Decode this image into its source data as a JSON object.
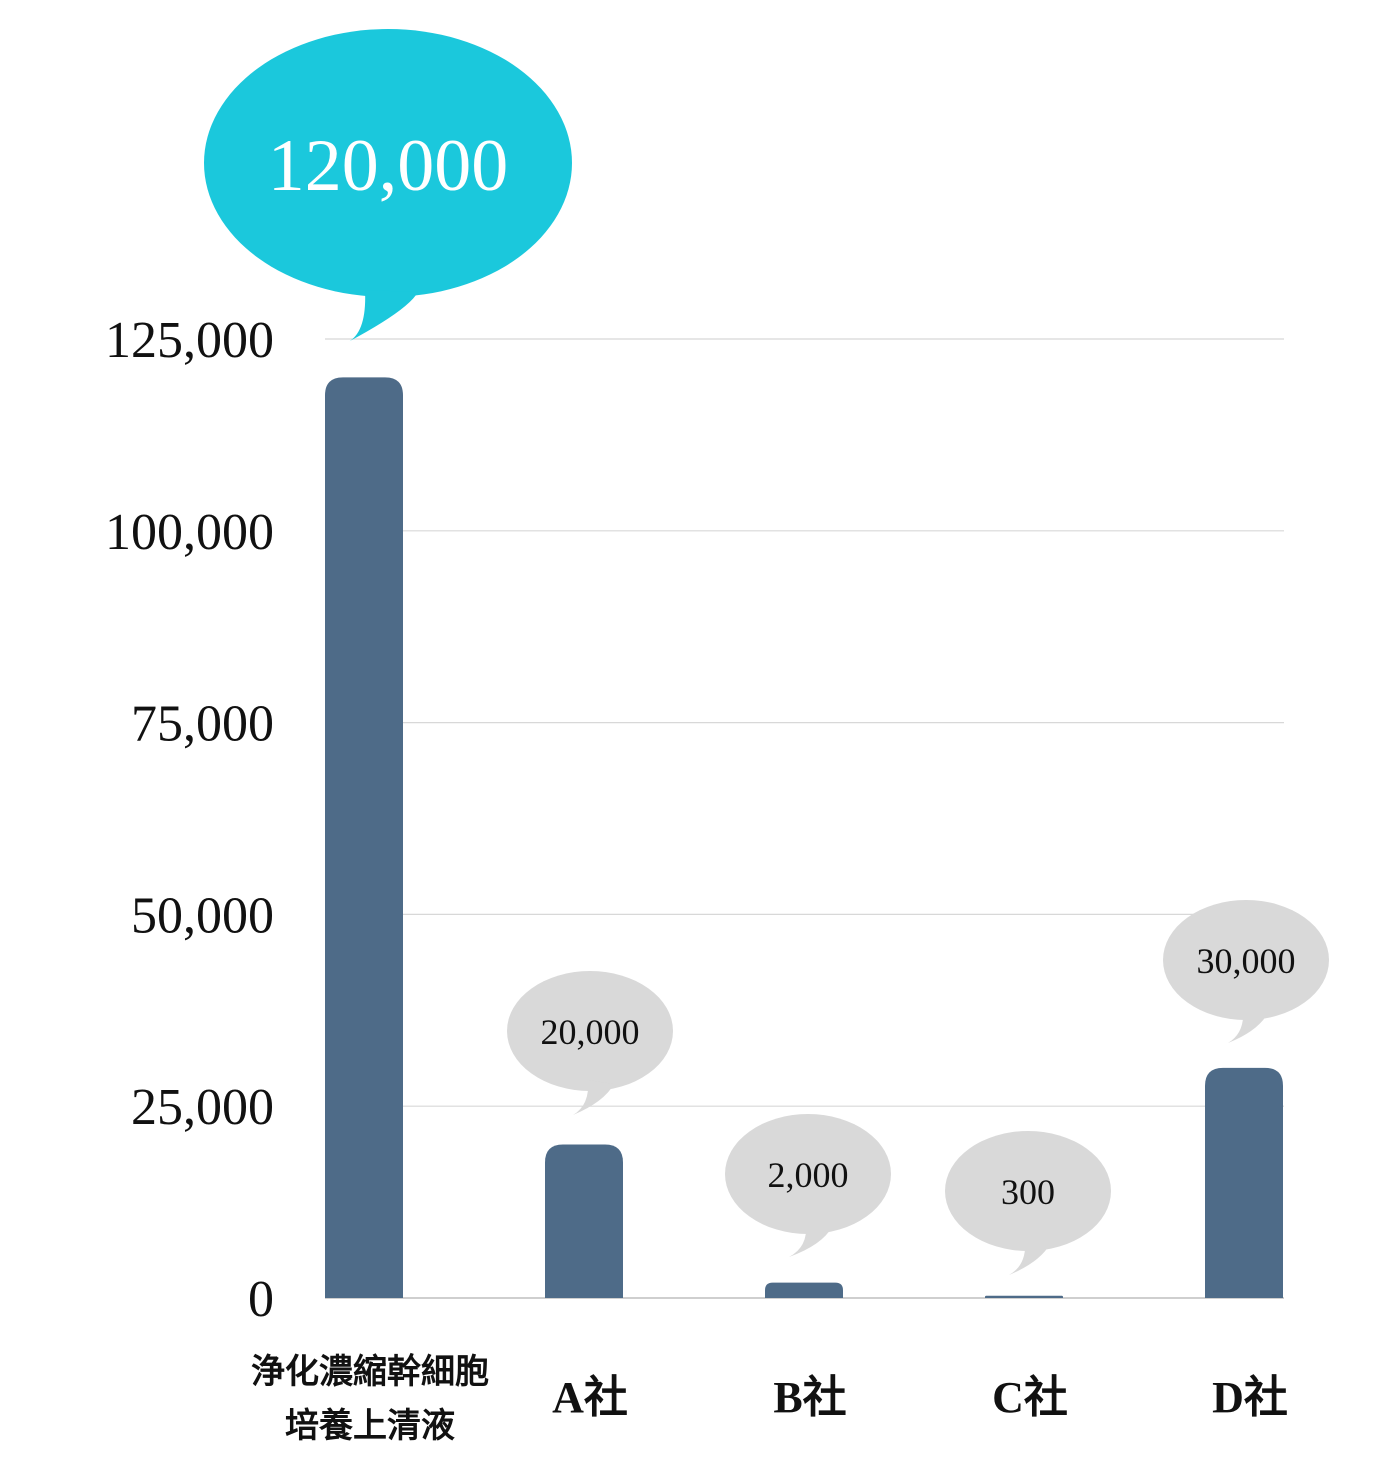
{
  "chart_data": {
    "type": "bar",
    "categories": [
      [
        "浄化濃縮幹細胞",
        "培養上清液"
      ],
      [
        "A社"
      ],
      [
        "B社"
      ],
      [
        "C社"
      ],
      [
        "D社"
      ]
    ],
    "values": [
      120000,
      20000,
      2000,
      300,
      30000
    ],
    "data_labels": [
      "120,000",
      "20,000",
      "2,000",
      "300",
      "30,000"
    ],
    "yticks": [
      0,
      25000,
      50000,
      75000,
      100000,
      125000
    ],
    "ytick_labels": [
      "0",
      "25,000",
      "50,000",
      "75,000",
      "100,000",
      "125,000"
    ],
    "ylim": [
      0,
      125000
    ],
    "grid": true,
    "title": "",
    "xlabel": "",
    "ylabel": "",
    "colors": {
      "bar": "#4e6b88",
      "grid": "#d8d8d8",
      "highlight_bubble": "#1bc8dc",
      "highlight_text": "#ffffff",
      "bubble": "#d9d9d9",
      "bubble_text": "#111111"
    }
  }
}
